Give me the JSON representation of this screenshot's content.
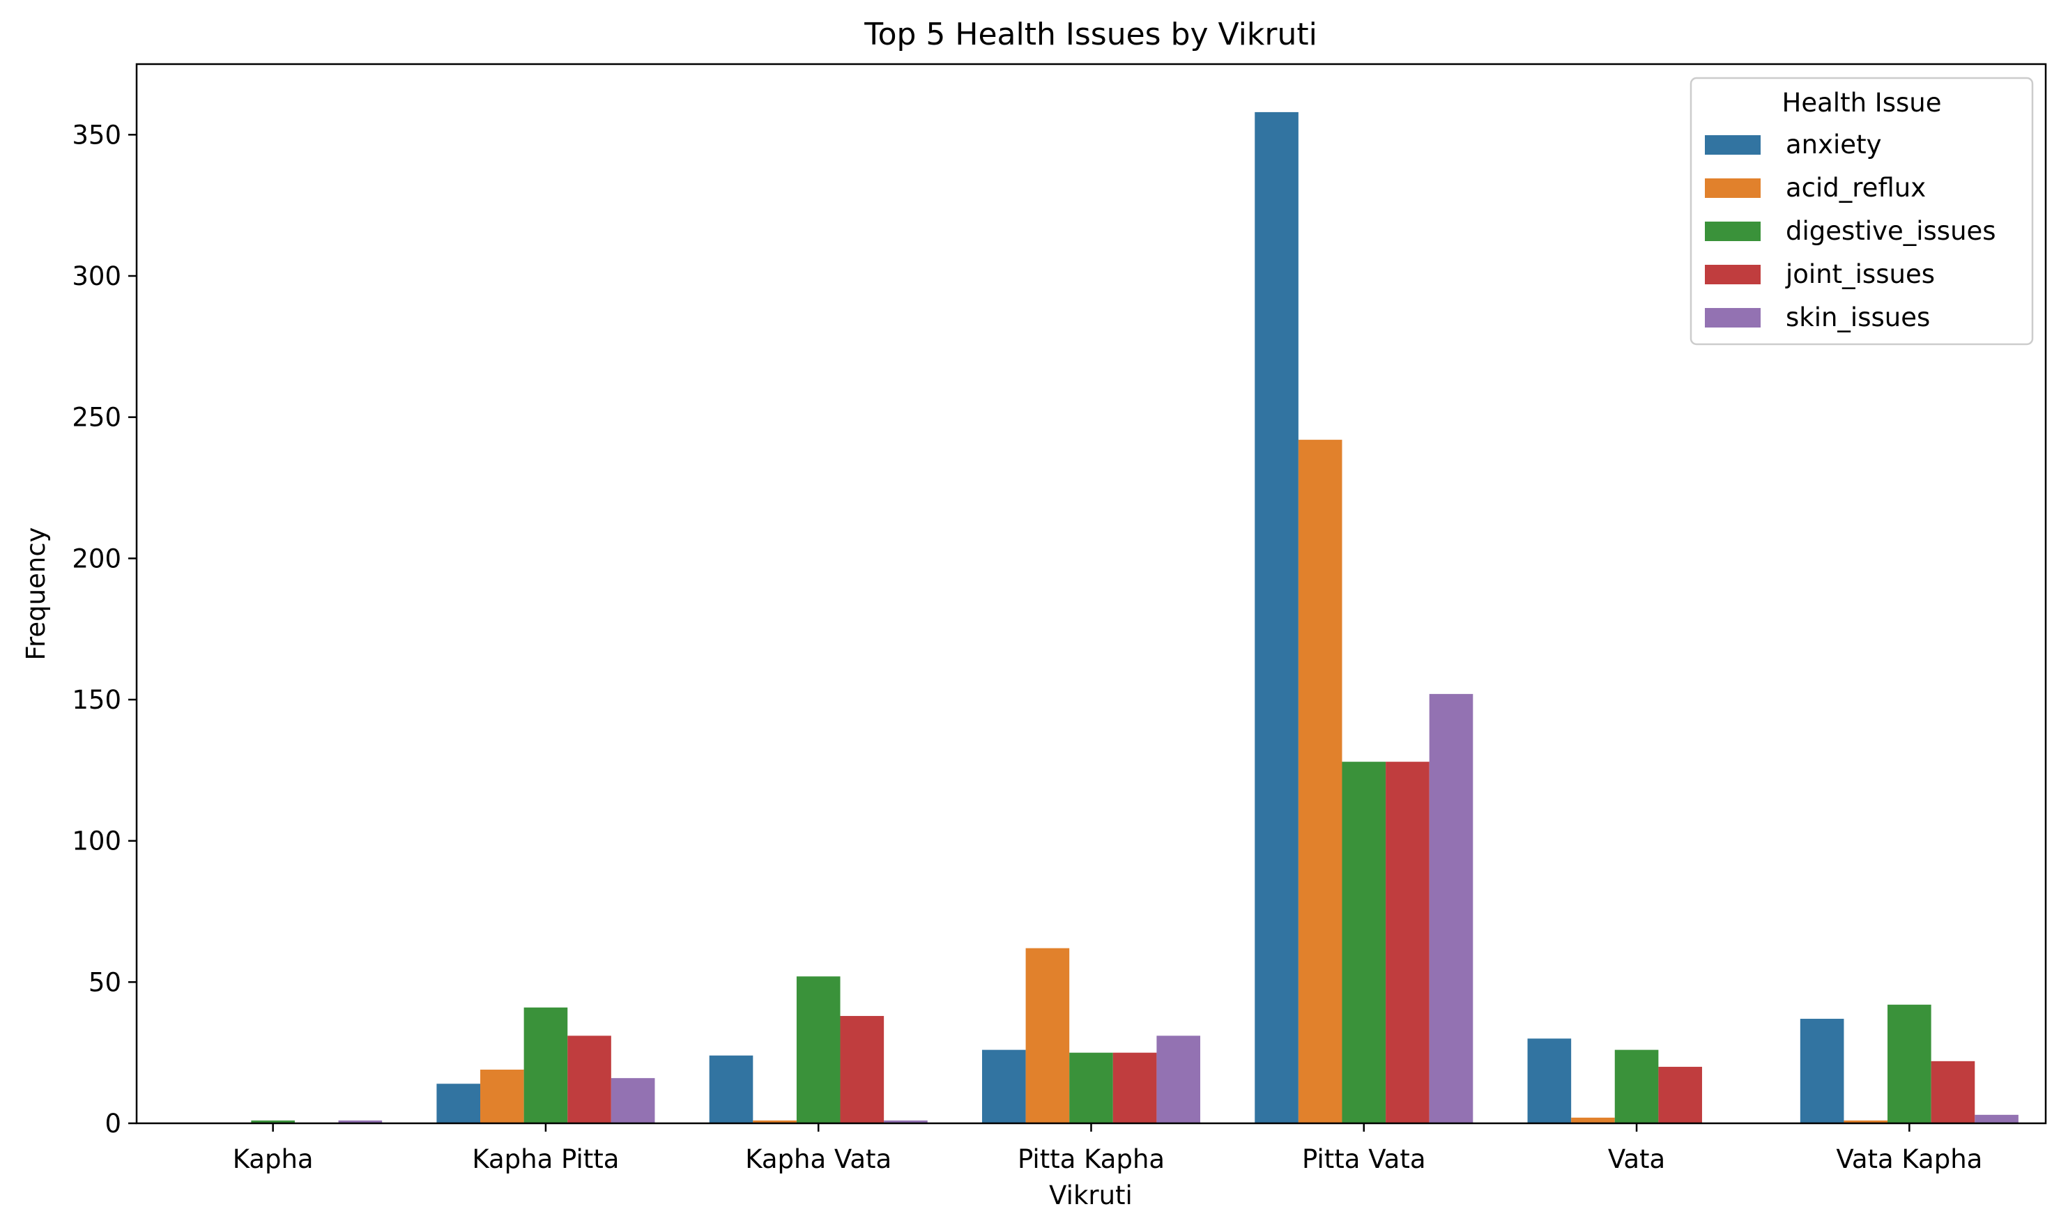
{
  "chart_data": {
    "type": "bar",
    "title": "Top 5 Health Issues by Vikruti",
    "xlabel": "Vikruti",
    "ylabel": "Frequency",
    "ylim": [
      0,
      375
    ],
    "yticks": [
      0,
      50,
      100,
      150,
      200,
      250,
      300,
      350
    ],
    "grid": false,
    "legend": {
      "title": "Health Issue",
      "placement": "top-right"
    },
    "categories": [
      "Kapha",
      "Kapha Pitta",
      "Kapha Vata",
      "Pitta Kapha",
      "Pitta Vata",
      "Vata",
      "Vata Kapha"
    ],
    "series": [
      {
        "name": "anxiety",
        "color": "#3274a1",
        "values": [
          0,
          14,
          24,
          26,
          358,
          30,
          37
        ]
      },
      {
        "name": "acid_reflux",
        "color": "#e1812c",
        "values": [
          0,
          19,
          1,
          62,
          242,
          2,
          1
        ]
      },
      {
        "name": "digestive_issues",
        "color": "#3a923a",
        "values": [
          1,
          41,
          52,
          25,
          128,
          26,
          42
        ]
      },
      {
        "name": "joint_issues",
        "color": "#c03d3e",
        "values": [
          0,
          31,
          38,
          25,
          128,
          20,
          22
        ]
      },
      {
        "name": "skin_issues",
        "color": "#9372b2",
        "values": [
          1,
          16,
          1,
          31,
          152,
          0,
          3
        ]
      }
    ]
  }
}
